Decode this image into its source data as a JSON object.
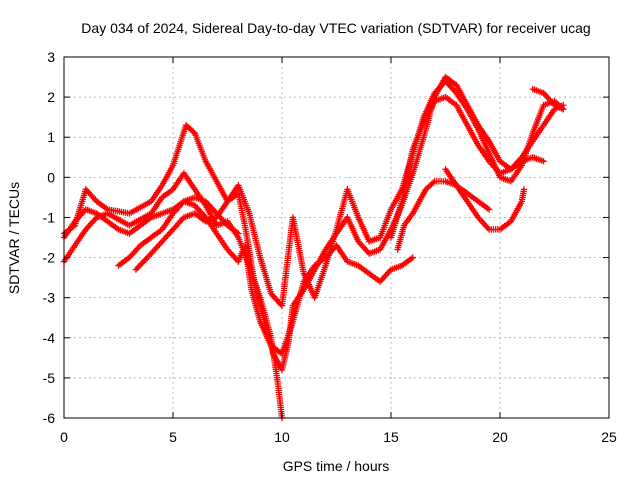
{
  "chart_data": {
    "type": "scatter",
    "title": "Day 034 of 2024, Sidereal Day-to-day VTEC variation (SDTVAR) for receiver ucag",
    "xlabel": "GPS time / hours",
    "ylabel": "SDTVAR / TECUs",
    "xlim": [
      0,
      25
    ],
    "ylim": [
      -6,
      3
    ],
    "xticks": [
      0,
      5,
      10,
      15,
      20,
      25
    ],
    "yticks": [
      -6,
      -5,
      -4,
      -3,
      -2,
      -1,
      0,
      1,
      2,
      3
    ],
    "grid": true,
    "marker": "+",
    "color": "#ff0000",
    "series": [
      {
        "points": [
          [
            0,
            -1.4
          ],
          [
            0.5,
            -1.2
          ],
          [
            1,
            -0.3
          ],
          [
            1.5,
            -0.6
          ],
          [
            2,
            -0.8
          ],
          [
            3,
            -0.9
          ],
          [
            4,
            -0.6
          ],
          [
            4.5,
            -0.2
          ],
          [
            5,
            0.3
          ],
          [
            5.3,
            0.8
          ],
          [
            5.6,
            1.3
          ],
          [
            6,
            1.1
          ],
          [
            6.5,
            0.4
          ],
          [
            7,
            -0.1
          ],
          [
            7.5,
            -0.6
          ],
          [
            8,
            -0.4
          ],
          [
            8.3,
            -1.2
          ],
          [
            8.7,
            -2.5
          ],
          [
            9.2,
            -3.6
          ],
          [
            9.6,
            -4.4
          ],
          [
            10,
            -4.8
          ],
          [
            10.3,
            -4.1
          ],
          [
            10.5,
            -3.2
          ],
          [
            11,
            -2.8
          ],
          [
            11.5,
            -2.3
          ],
          [
            12,
            -1.8
          ],
          [
            12.5,
            -1.4
          ],
          [
            13,
            -1.0
          ],
          [
            13.5,
            -1.6
          ],
          [
            14,
            -1.9
          ],
          [
            14.5,
            -1.8
          ],
          [
            15,
            -1.3
          ],
          [
            15.5,
            -0.7
          ],
          [
            16,
            0.1
          ],
          [
            16.5,
            1.0
          ],
          [
            17,
            2.0
          ],
          [
            17.5,
            2.5
          ],
          [
            18,
            2.3
          ],
          [
            18.5,
            1.8
          ],
          [
            19,
            1.3
          ],
          [
            19.5,
            0.9
          ],
          [
            20,
            0.4
          ],
          [
            20.5,
            0.2
          ],
          [
            21,
            0.5
          ],
          [
            21.5,
            0.9
          ],
          [
            22,
            1.3
          ],
          [
            22.5,
            1.7
          ],
          [
            22.9,
            1.8
          ]
        ]
      },
      {
        "points": [
          [
            0,
            -2.1
          ],
          [
            0.5,
            -1.7
          ],
          [
            1,
            -1.3
          ],
          [
            1.5,
            -1.0
          ],
          [
            2,
            -0.9
          ],
          [
            3,
            -1.2
          ],
          [
            4,
            -0.9
          ],
          [
            4.5,
            -0.5
          ],
          [
            5,
            -0.3
          ],
          [
            5.5,
            0.1
          ],
          [
            6,
            -0.3
          ],
          [
            6.5,
            -0.7
          ],
          [
            7,
            -1.2
          ],
          [
            7.5,
            -1.1
          ],
          [
            8,
            -1.5
          ],
          [
            8.5,
            -2.2
          ],
          [
            9,
            -3.0
          ],
          [
            9.5,
            -4.0
          ],
          [
            9.8,
            -5.1
          ],
          [
            10,
            -6.0
          ]
        ]
      },
      {
        "points": [
          [
            0,
            -1.5
          ],
          [
            0.5,
            -1.1
          ],
          [
            1,
            -0.8
          ],
          [
            1.5,
            -0.9
          ],
          [
            2,
            -1.1
          ],
          [
            2.5,
            -1.3
          ],
          [
            3,
            -1.4
          ],
          [
            3.5,
            -1.2
          ],
          [
            4,
            -1.0
          ],
          [
            4.5,
            -0.9
          ],
          [
            5,
            -0.8
          ],
          [
            5.5,
            -0.6
          ],
          [
            6,
            -0.5
          ],
          [
            6.5,
            -0.6
          ],
          [
            7,
            -0.9
          ],
          [
            7.5,
            -1.2
          ],
          [
            8,
            -1.4
          ]
        ]
      },
      {
        "points": [
          [
            2.5,
            -2.2
          ],
          [
            3,
            -2.0
          ],
          [
            3.5,
            -1.7
          ],
          [
            4,
            -1.5
          ],
          [
            4.5,
            -1.3
          ],
          [
            5,
            -0.9
          ],
          [
            5.5,
            -0.6
          ],
          [
            6,
            -0.7
          ],
          [
            6.5,
            -1.0
          ],
          [
            7,
            -1.4
          ],
          [
            7.5,
            -1.8
          ],
          [
            8,
            -2.1
          ],
          [
            8.3,
            -1.7
          ],
          [
            8.6,
            -2.8
          ],
          [
            9,
            -3.6
          ],
          [
            9.5,
            -4.2
          ],
          [
            10,
            -4.4
          ],
          [
            10.5,
            -3.6
          ],
          [
            11,
            -2.6
          ],
          [
            11.5,
            -2.2
          ],
          [
            12,
            -2.0
          ],
          [
            12.5,
            -1.7
          ],
          [
            13,
            -2.1
          ],
          [
            13.5,
            -2.2
          ],
          [
            14,
            -2.4
          ],
          [
            14.5,
            -2.6
          ],
          [
            15,
            -2.3
          ],
          [
            15.5,
            -2.2
          ],
          [
            16,
            -2.0
          ]
        ]
      },
      {
        "points": [
          [
            3.3,
            -2.3
          ],
          [
            4,
            -1.9
          ],
          [
            4.5,
            -1.6
          ],
          [
            5,
            -1.3
          ],
          [
            5.5,
            -1.0
          ],
          [
            6,
            -0.9
          ],
          [
            6.5,
            -1.1
          ],
          [
            7,
            -1.0
          ],
          [
            7.5,
            -0.6
          ],
          [
            8,
            -0.2
          ],
          [
            8.5,
            -0.9
          ],
          [
            9,
            -2.0
          ],
          [
            9.5,
            -2.9
          ],
          [
            10,
            -3.2
          ],
          [
            10.5,
            -1.0
          ],
          [
            11,
            -2.4
          ],
          [
            11.5,
            -3.0
          ],
          [
            12,
            -2.2
          ],
          [
            12.5,
            -1.3
          ],
          [
            13,
            -0.3
          ],
          [
            13.5,
            -1.0
          ],
          [
            14,
            -1.6
          ],
          [
            14.5,
            -1.5
          ],
          [
            15,
            -0.8
          ],
          [
            15.5,
            -0.3
          ],
          [
            16,
            0.6
          ],
          [
            16.5,
            1.5
          ],
          [
            17,
            2.1
          ],
          [
            17.5,
            2.4
          ],
          [
            18,
            2.1
          ],
          [
            18.5,
            1.7
          ],
          [
            19,
            1.2
          ],
          [
            19.5,
            0.6
          ],
          [
            20,
            0.0
          ],
          [
            20.5,
            -0.1
          ],
          [
            21,
            0.3
          ],
          [
            21.5,
            1.1
          ],
          [
            22,
            1.8
          ],
          [
            22.5,
            1.9
          ],
          [
            22.9,
            1.7
          ]
        ]
      },
      {
        "points": [
          [
            15,
            -1.5
          ],
          [
            15.5,
            -0.6
          ],
          [
            16,
            0.7
          ],
          [
            16.5,
            1.4
          ],
          [
            17,
            1.9
          ],
          [
            17.5,
            2.0
          ],
          [
            18,
            1.8
          ],
          [
            18.5,
            1.3
          ],
          [
            19,
            0.8
          ],
          [
            19.5,
            0.4
          ],
          [
            20,
            0.1
          ],
          [
            20.5,
            0.2
          ],
          [
            21,
            0.4
          ],
          [
            21.5,
            0.5
          ],
          [
            22,
            0.4
          ]
        ]
      },
      {
        "points": [
          [
            15.3,
            -1.8
          ],
          [
            15.6,
            -1.2
          ],
          [
            16,
            -0.9
          ],
          [
            16.3,
            -0.6
          ],
          [
            16.6,
            -0.3
          ],
          [
            17,
            -0.1
          ],
          [
            17.5,
            -0.1
          ],
          [
            18,
            -0.2
          ],
          [
            18.5,
            -0.4
          ],
          [
            19,
            -0.6
          ],
          [
            19.5,
            -0.8
          ]
        ]
      },
      {
        "points": [
          [
            17.5,
            0.2
          ],
          [
            18,
            -0.2
          ],
          [
            18.5,
            -0.6
          ],
          [
            19,
            -1.0
          ],
          [
            19.5,
            -1.3
          ],
          [
            20,
            -1.3
          ],
          [
            20.5,
            -1.1
          ],
          [
            21,
            -0.6
          ],
          [
            21.1,
            -0.3
          ]
        ]
      },
      {
        "points": [
          [
            21.5,
            2.2
          ],
          [
            22,
            2.1
          ],
          [
            22.5,
            1.8
          ],
          [
            22.9,
            1.7
          ]
        ]
      }
    ]
  }
}
